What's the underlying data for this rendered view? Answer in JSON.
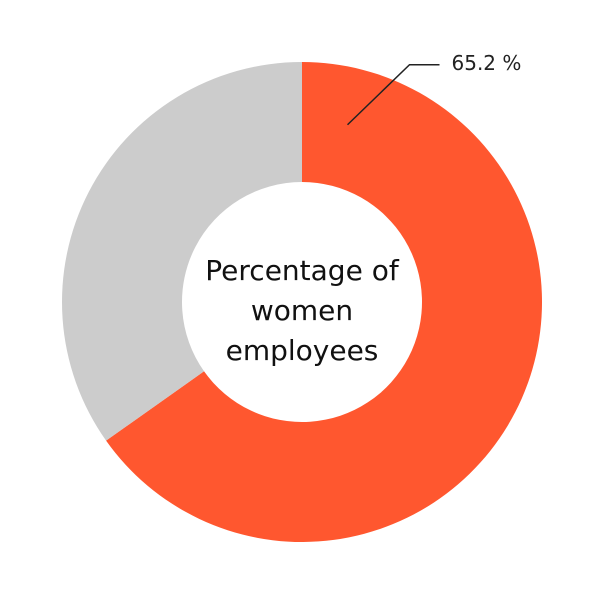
{
  "chart_data": {
    "type": "donut",
    "center_label": [
      "Percentage of",
      "women",
      "employees"
    ],
    "values": [
      65.2,
      34.8
    ],
    "value_labels": [
      "65.2 %",
      null
    ],
    "colors": [
      "#ff572f",
      "#cccccc"
    ]
  }
}
